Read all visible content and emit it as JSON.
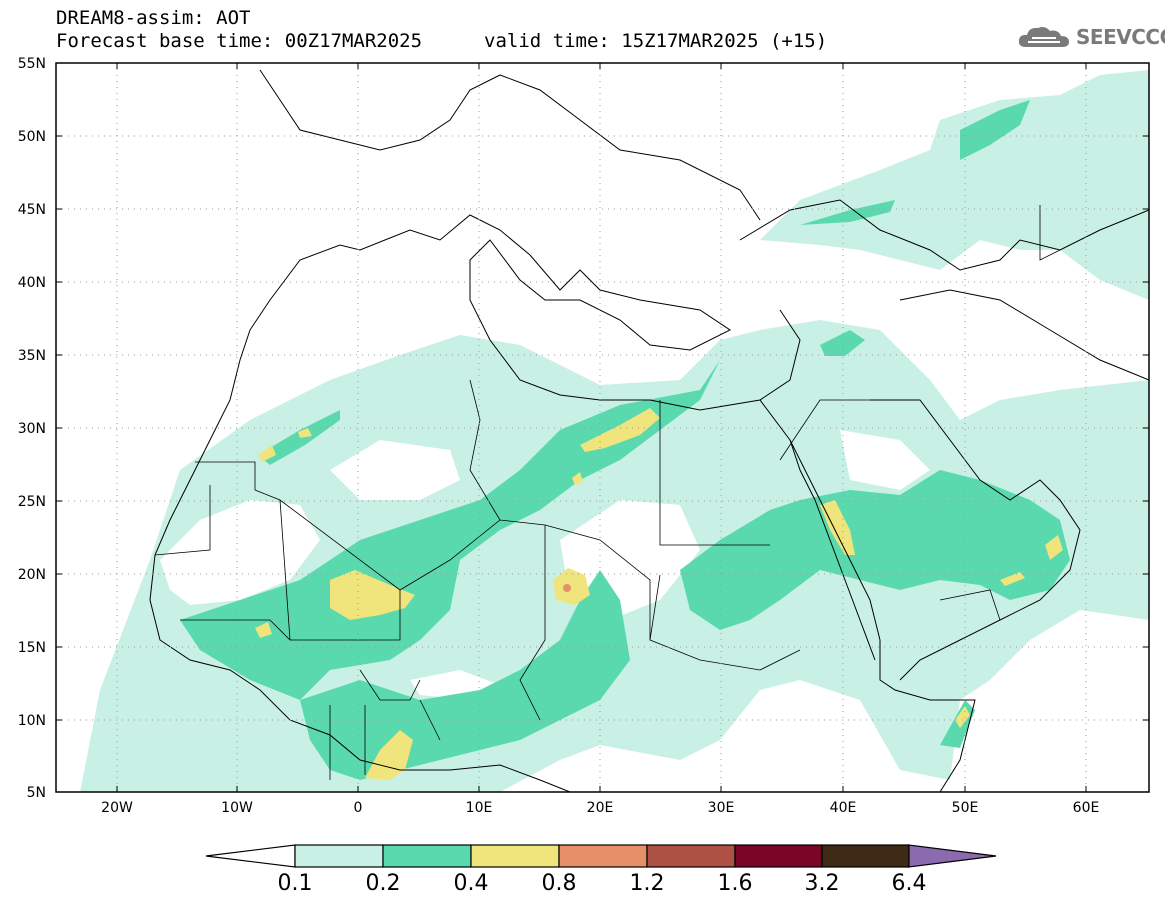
{
  "header": {
    "title": "DREAM8-assim: AOT",
    "base_time": "Forecast base time: 00Z17MAR2025",
    "valid_time": "valid time: 15Z17MAR2025 (+15)"
  },
  "logo": {
    "text": "SEEVCCC",
    "icon": "cloud-icon"
  },
  "map": {
    "lon_range": [
      -25,
      65
    ],
    "lat_range": [
      5,
      55
    ],
    "lat_ticks": [
      "55N",
      "50N",
      "45N",
      "40N",
      "35N",
      "30N",
      "25N",
      "20N",
      "15N",
      "10N",
      "5N"
    ],
    "lon_ticks": [
      "20W",
      "10W",
      "0",
      "10E",
      "20E",
      "30E",
      "40E",
      "50E",
      "60E"
    ],
    "grid": "dotted",
    "layers": [
      {
        "name": "aot-0.1-0.2",
        "color": "#c9f0e4"
      },
      {
        "name": "aot-0.2-0.4",
        "color": "#5ad9ae"
      },
      {
        "name": "aot-0.4-0.8",
        "color": "#f0e47c"
      },
      {
        "name": "aot-0.8-1.2",
        "color": "#e6906a"
      }
    ]
  },
  "colorbar": {
    "labels": [
      "0.1",
      "0.2",
      "0.4",
      "0.8",
      "1.2",
      "1.6",
      "3.2",
      "6.4"
    ],
    "colors": [
      "#ffffff",
      "#c9f0e4",
      "#5ad9ae",
      "#f0e47c",
      "#e6906a",
      "#ad5245",
      "#7a0526",
      "#3e2a16",
      "#8c6ab0"
    ]
  }
}
